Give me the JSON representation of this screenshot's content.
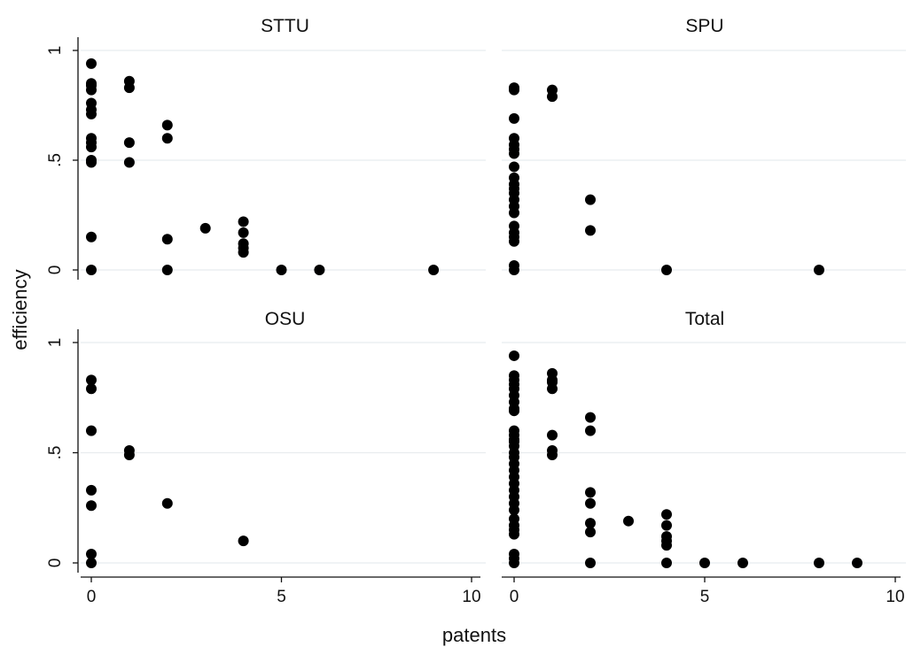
{
  "chart_data": {
    "type": "scatter",
    "xlabel": "patents",
    "ylabel": "efficiency",
    "xlim": [
      0,
      10
    ],
    "ylim": [
      0,
      1
    ],
    "xticks": [
      0,
      5,
      10
    ],
    "yticks": [
      0,
      0.5,
      1
    ],
    "xtick_labels": [
      "0",
      "5",
      "10"
    ],
    "ytick_labels": [
      "0",
      ".5",
      "1"
    ],
    "grid": "horizontal",
    "panels": [
      {
        "title": "STTU",
        "points": [
          [
            0,
            0.94
          ],
          [
            0,
            0.85
          ],
          [
            0,
            0.84
          ],
          [
            0,
            0.82
          ],
          [
            0,
            0.76
          ],
          [
            0,
            0.73
          ],
          [
            0,
            0.71
          ],
          [
            0,
            0.6
          ],
          [
            0,
            0.58
          ],
          [
            0,
            0.56
          ],
          [
            0,
            0.5
          ],
          [
            0,
            0.49
          ],
          [
            0,
            0.15
          ],
          [
            0,
            0.0
          ],
          [
            1,
            0.86
          ],
          [
            1,
            0.83
          ],
          [
            1,
            0.58
          ],
          [
            1,
            0.49
          ],
          [
            2,
            0.66
          ],
          [
            2,
            0.6
          ],
          [
            2,
            0.14
          ],
          [
            2,
            0.0
          ],
          [
            3,
            0.19
          ],
          [
            4,
            0.22
          ],
          [
            4,
            0.17
          ],
          [
            4,
            0.12
          ],
          [
            4,
            0.1
          ],
          [
            4,
            0.08
          ],
          [
            5,
            0.0
          ],
          [
            6,
            0.0
          ],
          [
            9,
            0.0
          ]
        ]
      },
      {
        "title": "SPU",
        "points": [
          [
            0,
            0.83
          ],
          [
            0,
            0.82
          ],
          [
            0,
            0.69
          ],
          [
            0,
            0.6
          ],
          [
            0,
            0.57
          ],
          [
            0,
            0.55
          ],
          [
            0,
            0.53
          ],
          [
            0,
            0.47
          ],
          [
            0,
            0.42
          ],
          [
            0,
            0.39
          ],
          [
            0,
            0.37
          ],
          [
            0,
            0.35
          ],
          [
            0,
            0.32
          ],
          [
            0,
            0.29
          ],
          [
            0,
            0.26
          ],
          [
            0,
            0.2
          ],
          [
            0,
            0.17
          ],
          [
            0,
            0.15
          ],
          [
            0,
            0.13
          ],
          [
            0,
            0.02
          ],
          [
            0,
            0.0
          ],
          [
            1,
            0.82
          ],
          [
            1,
            0.79
          ],
          [
            2,
            0.32
          ],
          [
            2,
            0.18
          ],
          [
            4,
            0.0
          ],
          [
            8,
            0.0
          ]
        ]
      },
      {
        "title": "OSU",
        "points": [
          [
            0,
            0.83
          ],
          [
            0,
            0.79
          ],
          [
            0,
            0.6
          ],
          [
            0,
            0.33
          ],
          [
            0,
            0.26
          ],
          [
            0,
            0.04
          ],
          [
            0,
            0.0
          ],
          [
            1,
            0.51
          ],
          [
            1,
            0.49
          ],
          [
            2,
            0.27
          ],
          [
            4,
            0.1
          ]
        ]
      },
      {
        "title": "Total",
        "points": [
          [
            0,
            0.94
          ],
          [
            0,
            0.85
          ],
          [
            0,
            0.83
          ],
          [
            0,
            0.81
          ],
          [
            0,
            0.79
          ],
          [
            0,
            0.76
          ],
          [
            0,
            0.73
          ],
          [
            0,
            0.7
          ],
          [
            0,
            0.69
          ],
          [
            0,
            0.6
          ],
          [
            0,
            0.58
          ],
          [
            0,
            0.56
          ],
          [
            0,
            0.55
          ],
          [
            0,
            0.53
          ],
          [
            0,
            0.5
          ],
          [
            0,
            0.48
          ],
          [
            0,
            0.45
          ],
          [
            0,
            0.42
          ],
          [
            0,
            0.39
          ],
          [
            0,
            0.36
          ],
          [
            0,
            0.33
          ],
          [
            0,
            0.3
          ],
          [
            0,
            0.27
          ],
          [
            0,
            0.24
          ],
          [
            0,
            0.2
          ],
          [
            0,
            0.17
          ],
          [
            0,
            0.15
          ],
          [
            0,
            0.13
          ],
          [
            0,
            0.04
          ],
          [
            0,
            0.02
          ],
          [
            0,
            0.0
          ],
          [
            1,
            0.86
          ],
          [
            1,
            0.83
          ],
          [
            1,
            0.82
          ],
          [
            1,
            0.79
          ],
          [
            1,
            0.58
          ],
          [
            1,
            0.51
          ],
          [
            1,
            0.49
          ],
          [
            2,
            0.66
          ],
          [
            2,
            0.6
          ],
          [
            2,
            0.32
          ],
          [
            2,
            0.27
          ],
          [
            2,
            0.18
          ],
          [
            2,
            0.14
          ],
          [
            2,
            0.0
          ],
          [
            3,
            0.19
          ],
          [
            4,
            0.22
          ],
          [
            4,
            0.17
          ],
          [
            4,
            0.12
          ],
          [
            4,
            0.1
          ],
          [
            4,
            0.08
          ],
          [
            4,
            0.0
          ],
          [
            5,
            0.0
          ],
          [
            6,
            0.0
          ],
          [
            8,
            0.0
          ],
          [
            9,
            0.0
          ]
        ]
      }
    ]
  }
}
